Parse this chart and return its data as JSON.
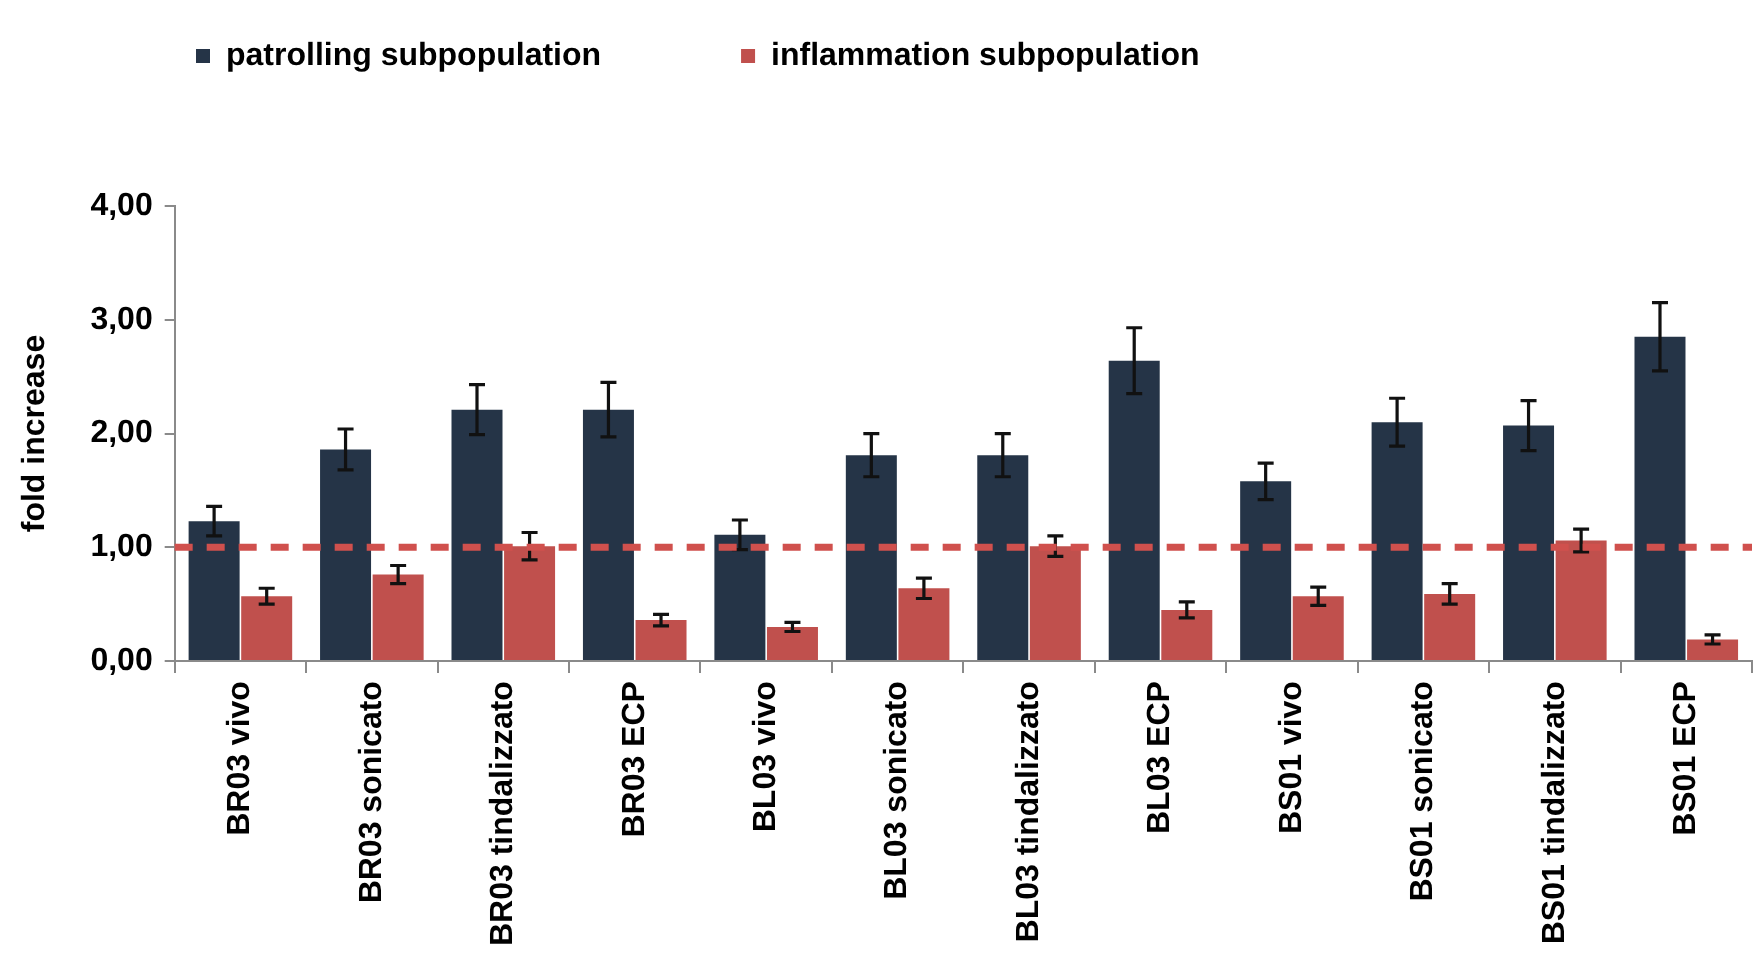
{
  "chart_data": {
    "type": "bar",
    "ylabel": "fold increase",
    "categories": [
      "BR03 vivo",
      "BR03 sonicato",
      "BR03 tindalizzato",
      "BR03 ECP",
      "BL03 vivo",
      "BL03 sonicato",
      "BL03 tindalizzato",
      "BL03 ECP",
      "BS01 vivo",
      "BS01 sonicato",
      "BS01 tindalizzato",
      "BS01 ECP"
    ],
    "series": [
      {
        "name": "patrolling subpopulation",
        "color": "#253447",
        "values": [
          1.23,
          1.86,
          2.21,
          2.21,
          1.11,
          1.81,
          1.81,
          2.64,
          1.58,
          2.1,
          2.07,
          2.85
        ],
        "errors": [
          0.13,
          0.18,
          0.22,
          0.24,
          0.13,
          0.19,
          0.19,
          0.29,
          0.16,
          0.21,
          0.22,
          0.3
        ]
      },
      {
        "name": "inflammation subpopulation",
        "color": "#c0504d",
        "values": [
          0.57,
          0.76,
          1.01,
          0.36,
          0.3,
          0.64,
          1.01,
          0.45,
          0.57,
          0.59,
          1.06,
          0.19
        ],
        "errors": [
          0.07,
          0.08,
          0.12,
          0.05,
          0.04,
          0.09,
          0.09,
          0.07,
          0.08,
          0.09,
          0.1,
          0.04
        ]
      }
    ],
    "ylim": [
      0,
      4
    ],
    "yticks": [
      {
        "value": 0,
        "label": "0,00"
      },
      {
        "value": 1,
        "label": "1,00"
      },
      {
        "value": 2,
        "label": "2,00"
      },
      {
        "value": 3,
        "label": "3,00"
      },
      {
        "value": 4,
        "label": "4,00"
      }
    ],
    "ref_lines": [
      {
        "axis": "y",
        "value": 1,
        "color": "#d0504d",
        "line_style": "dashed"
      }
    ],
    "legend": "top left",
    "grid": false
  }
}
